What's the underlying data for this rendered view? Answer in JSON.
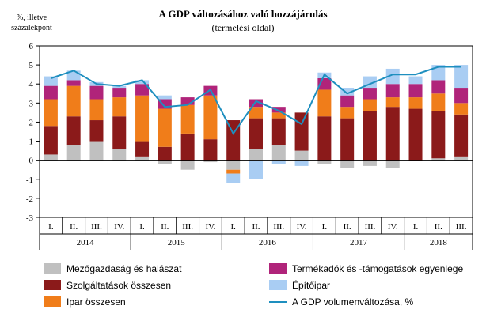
{
  "chart_data": {
    "type": "bar",
    "title": "A GDP változásához való hozzájárulás",
    "subtitle": "(termelési oldal)",
    "unit_lines": [
      "%, illetve",
      "százalékpont"
    ],
    "ylim": [
      -3,
      6
    ],
    "yticks": [
      6,
      5,
      4,
      3,
      2,
      1,
      0,
      -1,
      -2,
      -3
    ],
    "categories": [
      "I.",
      "II.",
      "III.",
      "IV.",
      "I.",
      "II.",
      "III.",
      "IV.",
      "I.",
      "II.",
      "III.",
      "IV.",
      "I.",
      "II.",
      "III.",
      "IV.",
      "I.",
      "II.",
      "III."
    ],
    "years": [
      {
        "label": "2014",
        "quarters": 4
      },
      {
        "label": "2015",
        "quarters": 4
      },
      {
        "label": "2016",
        "quarters": 4
      },
      {
        "label": "2017",
        "quarters": 4
      },
      {
        "label": "2018",
        "quarters": 3
      }
    ],
    "series": [
      {
        "name": "Mezőgazdaság és halászat",
        "color": "#c0c0c0",
        "kind": "bar",
        "values": [
          0.3,
          0.8,
          1.0,
          0.6,
          0.2,
          -0.2,
          -0.5,
          -0.1,
          -0.5,
          0.6,
          0.8,
          0.5,
          -0.2,
          -0.4,
          -0.3,
          -0.4,
          0.0,
          0.1,
          0.2
        ]
      },
      {
        "name": "Szolgáltatások összesen",
        "color": "#8b1a1a",
        "kind": "bar",
        "values": [
          1.5,
          1.5,
          1.1,
          1.7,
          0.8,
          0.7,
          1.4,
          1.1,
          2.1,
          1.6,
          1.4,
          2.0,
          2.3,
          2.2,
          2.6,
          2.8,
          2.7,
          2.5,
          2.2
        ]
      },
      {
        "name": "Ipar összesen",
        "color": "#f07d1a",
        "kind": "bar",
        "values": [
          1.4,
          1.6,
          1.1,
          1.0,
          2.4,
          2.0,
          1.5,
          2.3,
          -0.2,
          0.6,
          0.3,
          0.0,
          1.4,
          0.6,
          0.6,
          0.5,
          0.6,
          0.9,
          0.6
        ]
      },
      {
        "name": "Termékadók és -támogatások egyenlege",
        "color": "#b0247a",
        "kind": "bar",
        "values": [
          0.7,
          0.3,
          0.7,
          0.5,
          0.6,
          0.5,
          0.4,
          0.5,
          0.0,
          0.4,
          0.3,
          0.0,
          0.6,
          0.6,
          0.6,
          0.7,
          0.7,
          0.7,
          0.8
        ]
      },
      {
        "name": "Építőipar",
        "color": "#a9cdf3",
        "kind": "bar",
        "values": [
          0.5,
          0.5,
          0.2,
          0.1,
          0.2,
          0.2,
          0.0,
          0.0,
          -0.5,
          -1.0,
          -0.2,
          -0.3,
          0.3,
          0.4,
          0.6,
          0.8,
          0.4,
          0.8,
          1.2
        ]
      },
      {
        "name": "A GDP volumenváltozása, %",
        "color": "#1e8fbf",
        "kind": "line",
        "values": [
          4.3,
          4.7,
          4.0,
          3.9,
          4.2,
          2.8,
          2.9,
          3.7,
          1.4,
          3.1,
          2.6,
          1.9,
          4.5,
          3.5,
          4.0,
          4.5,
          4.5,
          4.9,
          4.9
        ]
      }
    ],
    "grid": false,
    "legend_position": "bottom"
  }
}
